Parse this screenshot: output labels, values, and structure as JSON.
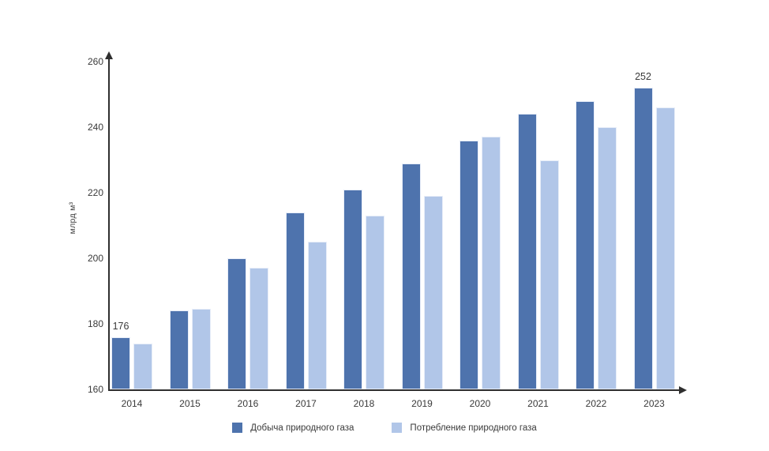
{
  "chart_data": {
    "type": "bar",
    "categories": [
      "2014",
      "2015",
      "2016",
      "2017",
      "2018",
      "2019",
      "2020",
      "2021",
      "2022",
      "2023"
    ],
    "series": [
      {
        "name": "Добыча природного газа",
        "color": "#4e73ad",
        "values": [
          176,
          184,
          200,
          214,
          221,
          229,
          236,
          244,
          248,
          252
        ]
      },
      {
        "name": "Потребление природного газа",
        "color": "#b1c6e8",
        "values": [
          174,
          184.5,
          197,
          205,
          213,
          219,
          237,
          230,
          240,
          246
        ]
      }
    ],
    "title": "",
    "xlabel": "",
    "ylabel": "млрд м³",
    "ylim": [
      160,
      260
    ],
    "yticks": [
      160,
      180,
      200,
      220,
      240,
      260
    ],
    "grid": false,
    "legend_position": "bottom",
    "annotations": [
      {
        "category": "2014",
        "series": 0,
        "text": "176"
      },
      {
        "category": "2023",
        "series": 0,
        "text": "252"
      }
    ]
  },
  "colors": {
    "production_bar": "#4e73ad",
    "consumption_bar": "#b1c6e8",
    "axis": "#2f2f2f",
    "text": "#3a3a3a",
    "background": "#ffffff"
  }
}
